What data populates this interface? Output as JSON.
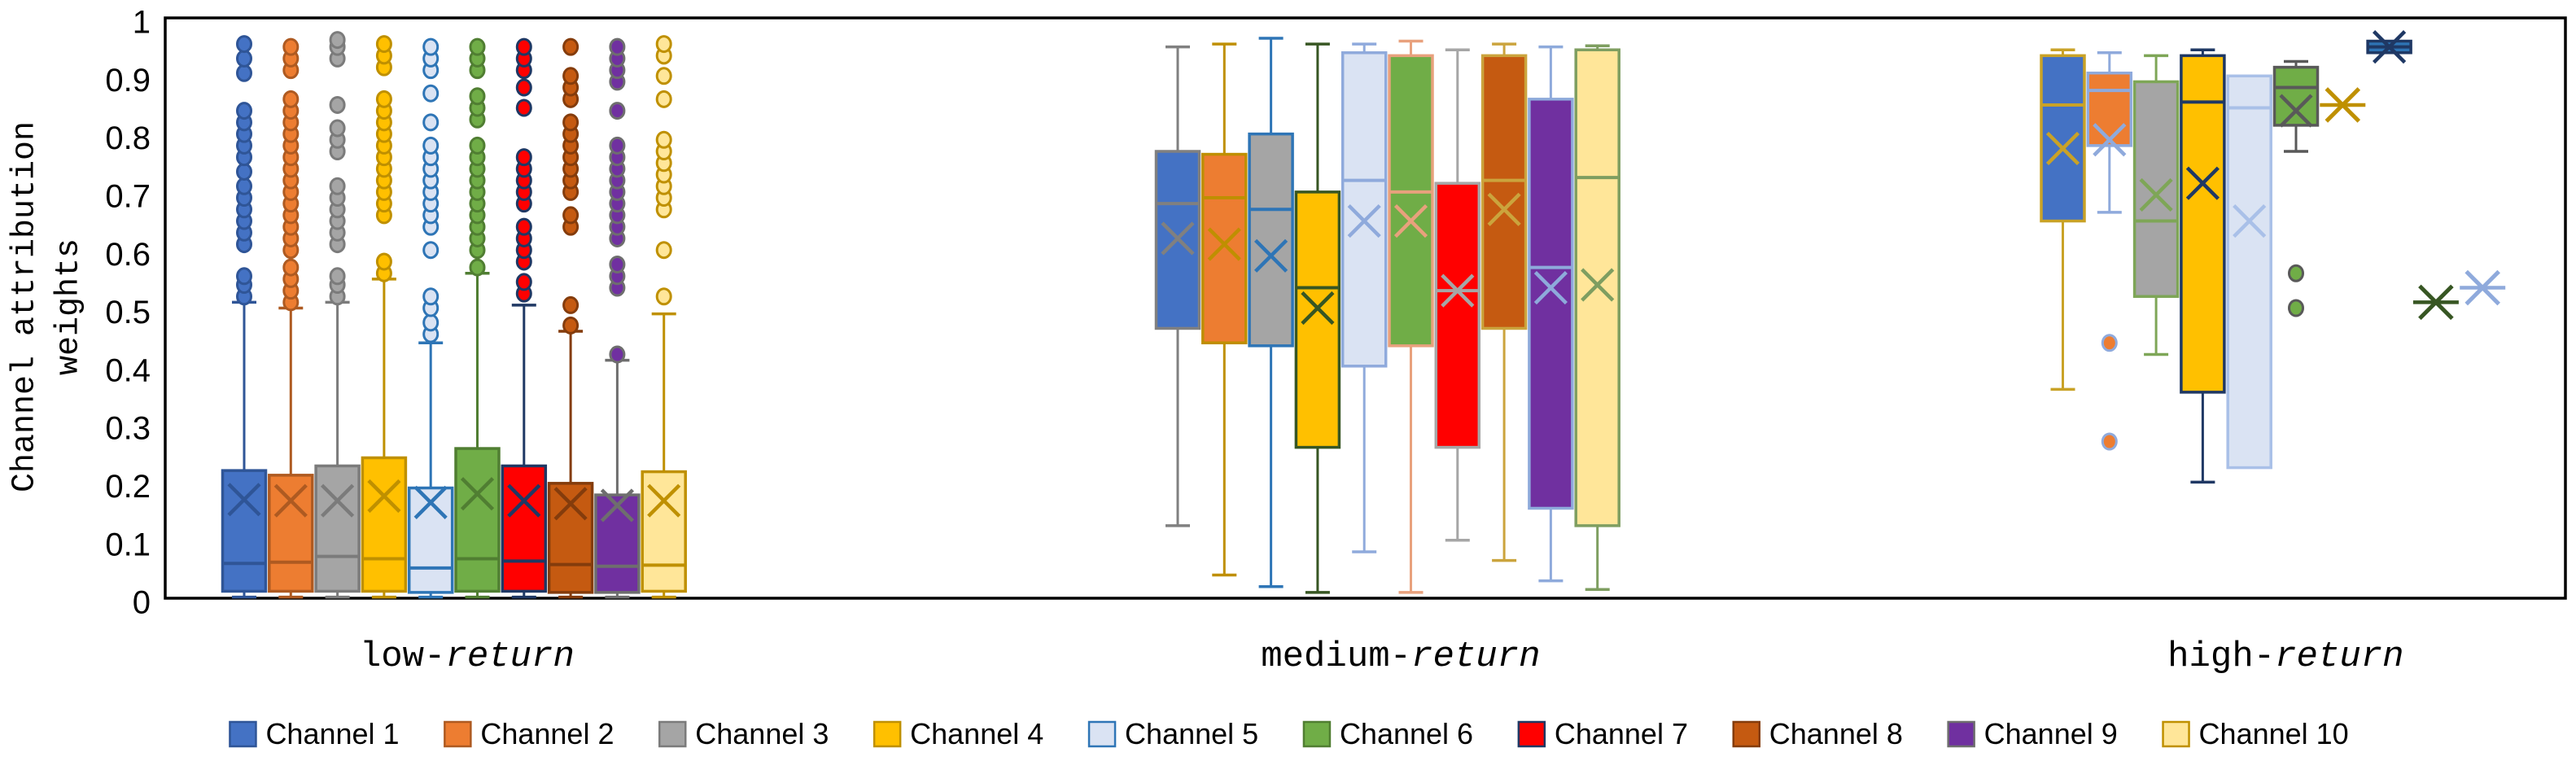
{
  "chart_data": {
    "type": "boxplot",
    "title": "",
    "ylabel_line1": "Channel attribution",
    "ylabel_line2": "weights",
    "ylim": [
      0,
      1
    ],
    "yticks": [
      "0",
      "0.1",
      "0.2",
      "0.3",
      "0.4",
      "0.5",
      "0.6",
      "0.7",
      "0.8",
      "0.9",
      "1"
    ],
    "ytick_values": [
      0,
      0.1,
      0.2,
      0.3,
      0.4,
      0.5,
      0.6,
      0.7,
      0.8,
      0.9,
      1
    ],
    "grid": false,
    "legend_position": "bottom",
    "categories": [
      "low-return",
      "medium-return",
      "high-return"
    ],
    "category_labels": [
      {
        "prefix": "low-",
        "italic": "return"
      },
      {
        "prefix": "medium-",
        "italic": "return"
      },
      {
        "prefix": "high-",
        "italic": "return"
      }
    ],
    "channels": [
      {
        "name": "Channel 1",
        "fill": "#4472C4"
      },
      {
        "name": "Channel 2",
        "fill": "#ED7D31"
      },
      {
        "name": "Channel 3",
        "fill": "#A5A5A5"
      },
      {
        "name": "Channel 4",
        "fill": "#FFC000"
      },
      {
        "name": "Channel 5",
        "fill": "#DAE3F3"
      },
      {
        "name": "Channel 6",
        "fill": "#70AD47"
      },
      {
        "name": "Channel 7",
        "fill": "#FF0000"
      },
      {
        "name": "Channel 8",
        "fill": "#C55A11"
      },
      {
        "name": "Channel 9",
        "fill": "#7030A0"
      },
      {
        "name": "Channel 10",
        "fill": "#FFE699"
      }
    ],
    "groups": [
      {
        "category": "low-return",
        "series": [
          {
            "channel": "Channel 1",
            "stroke": "#2F5597",
            "whisker_low": 0.002,
            "q1": 0.012,
            "median": 0.06,
            "q3": 0.22,
            "whisker_high": 0.51,
            "mean": 0.17,
            "outliers": [
              0.52,
              0.54,
              0.555,
              0.61,
              0.63,
              0.65,
              0.67,
              0.69,
              0.71,
              0.735,
              0.76,
              0.78,
              0.8,
              0.82,
              0.84,
              0.905,
              0.93,
              0.955
            ]
          },
          {
            "channel": "Channel 2",
            "stroke": "#AE5A21",
            "whisker_low": 0.002,
            "q1": 0.012,
            "median": 0.062,
            "q3": 0.212,
            "whisker_high": 0.5,
            "mean": 0.168,
            "outliers": [
              0.51,
              0.53,
              0.55,
              0.57,
              0.6,
              0.62,
              0.64,
              0.66,
              0.68,
              0.7,
              0.72,
              0.74,
              0.76,
              0.78,
              0.8,
              0.82,
              0.84,
              0.86,
              0.91,
              0.93,
              0.95
            ]
          },
          {
            "channel": "Channel 3",
            "stroke": "#7B7B7B",
            "whisker_low": 0.002,
            "q1": 0.012,
            "median": 0.072,
            "q3": 0.228,
            "whisker_high": 0.51,
            "mean": 0.168,
            "outliers": [
              0.52,
              0.54,
              0.555,
              0.61,
              0.63,
              0.65,
              0.67,
              0.69,
              0.71,
              0.77,
              0.79,
              0.81,
              0.85,
              0.93,
              0.95,
              0.962
            ]
          },
          {
            "channel": "Channel 4",
            "stroke": "#BF9000",
            "whisker_low": 0.002,
            "q1": 0.012,
            "median": 0.068,
            "q3": 0.242,
            "whisker_high": 0.55,
            "mean": 0.176,
            "outliers": [
              0.56,
              0.58,
              0.66,
              0.68,
              0.7,
              0.72,
              0.74,
              0.76,
              0.78,
              0.8,
              0.82,
              0.84,
              0.86,
              0.915,
              0.935,
              0.955
            ]
          },
          {
            "channel": "Channel 5",
            "stroke": "#2E75B6",
            "whisker_low": 0.002,
            "q1": 0.01,
            "median": 0.052,
            "q3": 0.19,
            "whisker_high": 0.44,
            "mean": 0.165,
            "outliers": [
              0.455,
              0.475,
              0.5,
              0.52,
              0.6,
              0.64,
              0.66,
              0.68,
              0.7,
              0.72,
              0.74,
              0.76,
              0.78,
              0.82,
              0.87,
              0.91,
              0.93,
              0.95
            ]
          },
          {
            "channel": "Channel 6",
            "stroke": "#507E32",
            "whisker_low": 0.002,
            "q1": 0.012,
            "median": 0.068,
            "q3": 0.258,
            "whisker_high": 0.56,
            "mean": 0.18,
            "outliers": [
              0.57,
              0.6,
              0.62,
              0.64,
              0.66,
              0.68,
              0.7,
              0.72,
              0.74,
              0.76,
              0.78,
              0.825,
              0.845,
              0.865,
              0.91,
              0.93,
              0.95
            ]
          },
          {
            "channel": "Channel 7",
            "stroke": "#1F3864",
            "whisker_low": 0.002,
            "q1": 0.012,
            "median": 0.064,
            "q3": 0.228,
            "whisker_high": 0.505,
            "mean": 0.168,
            "outliers": [
              0.525,
              0.545,
              0.58,
              0.6,
              0.62,
              0.64,
              0.68,
              0.7,
              0.72,
              0.74,
              0.76,
              0.845,
              0.88,
              0.91,
              0.93,
              0.95
            ]
          },
          {
            "channel": "Channel 8",
            "stroke": "#843C0C",
            "whisker_low": 0.002,
            "q1": 0.01,
            "median": 0.058,
            "q3": 0.198,
            "whisker_high": 0.46,
            "mean": 0.163,
            "outliers": [
              0.47,
              0.505,
              0.64,
              0.66,
              0.7,
              0.72,
              0.74,
              0.76,
              0.78,
              0.8,
              0.82,
              0.86,
              0.88,
              0.9,
              0.95
            ]
          },
          {
            "channel": "Channel 9",
            "stroke": "#6E6E6E",
            "whisker_low": 0.002,
            "q1": 0.01,
            "median": 0.055,
            "q3": 0.178,
            "whisker_high": 0.41,
            "mean": 0.16,
            "outliers": [
              0.42,
              0.535,
              0.555,
              0.575,
              0.62,
              0.64,
              0.66,
              0.68,
              0.7,
              0.72,
              0.74,
              0.76,
              0.78,
              0.84,
              0.89,
              0.91,
              0.93,
              0.95
            ]
          },
          {
            "channel": "Channel 10",
            "stroke": "#BF9000",
            "whisker_low": 0.002,
            "q1": 0.012,
            "median": 0.057,
            "q3": 0.218,
            "whisker_high": 0.49,
            "mean": 0.168,
            "outliers": [
              0.52,
              0.6,
              0.67,
              0.69,
              0.71,
              0.73,
              0.75,
              0.77,
              0.79,
              0.86,
              0.9,
              0.935,
              0.955
            ]
          }
        ]
      },
      {
        "category": "medium-return",
        "series": [
          {
            "channel": "Channel 1",
            "stroke": "#808080",
            "whisker_low": 0.125,
            "q1": 0.465,
            "median": 0.68,
            "q3": 0.77,
            "whisker_high": 0.95,
            "mean": 0.62,
            "outliers": []
          },
          {
            "channel": "Channel 2",
            "stroke": "#BF8F00",
            "whisker_low": 0.04,
            "q1": 0.44,
            "median": 0.69,
            "q3": 0.765,
            "whisker_high": 0.955,
            "mean": 0.61,
            "outliers": []
          },
          {
            "channel": "Channel 3",
            "stroke": "#2E75B6",
            "whisker_low": 0.02,
            "q1": 0.435,
            "median": 0.67,
            "q3": 0.8,
            "whisker_high": 0.965,
            "mean": 0.59,
            "outliers": []
          },
          {
            "channel": "Channel 4",
            "stroke": "#375623",
            "whisker_low": 0.01,
            "q1": 0.26,
            "median": 0.535,
            "q3": 0.7,
            "whisker_high": 0.955,
            "mean": 0.5,
            "outliers": []
          },
          {
            "channel": "Channel 5",
            "stroke": "#8FAADC",
            "whisker_low": 0.08,
            "q1": 0.4,
            "median": 0.72,
            "q3": 0.94,
            "whisker_high": 0.955,
            "mean": 0.65,
            "outliers": []
          },
          {
            "channel": "Channel 6",
            "stroke": "#E8A17D",
            "whisker_low": 0.01,
            "q1": 0.435,
            "median": 0.7,
            "q3": 0.935,
            "whisker_high": 0.96,
            "mean": 0.65,
            "outliers": []
          },
          {
            "channel": "Channel 7",
            "stroke": "#A6A6A6",
            "whisker_low": 0.1,
            "q1": 0.26,
            "median": 0.53,
            "q3": 0.715,
            "whisker_high": 0.945,
            "mean": 0.53,
            "outliers": []
          },
          {
            "channel": "Channel 8",
            "stroke": "#CBA43D",
            "whisker_low": 0.065,
            "q1": 0.465,
            "median": 0.72,
            "q3": 0.935,
            "whisker_high": 0.955,
            "mean": 0.67,
            "outliers": []
          },
          {
            "channel": "Channel 9",
            "stroke": "#8EAADB",
            "whisker_low": 0.03,
            "q1": 0.155,
            "median": 0.57,
            "q3": 0.86,
            "whisker_high": 0.95,
            "mean": 0.535,
            "outliers": []
          },
          {
            "channel": "Channel 10",
            "stroke": "#7E9E60",
            "whisker_low": 0.015,
            "q1": 0.125,
            "median": 0.725,
            "q3": 0.945,
            "whisker_high": 0.952,
            "mean": 0.54,
            "outliers": []
          }
        ]
      },
      {
        "category": "high-return",
        "series": [
          {
            "channel": "Channel 1",
            "stroke": "#C9A227",
            "whisker_low": 0.36,
            "q1": 0.65,
            "median": 0.85,
            "q3": 0.935,
            "whisker_high": 0.945,
            "mean": 0.775,
            "outliers": []
          },
          {
            "channel": "Channel 2",
            "stroke": "#8FAADC",
            "whisker_low": 0.665,
            "q1": 0.78,
            "median": 0.875,
            "q3": 0.905,
            "whisker_high": 0.94,
            "mean": 0.79,
            "outliers": [
              0.44,
              0.27
            ]
          },
          {
            "channel": "Channel 3",
            "stroke": "#7EA657",
            "whisker_low": 0.42,
            "q1": 0.52,
            "median": 0.65,
            "q3": 0.89,
            "whisker_high": 0.935,
            "mean": 0.695,
            "outliers": []
          },
          {
            "channel": "Channel 4",
            "stroke": "#1F3864",
            "whisker_low": 0.2,
            "q1": 0.355,
            "median": 0.855,
            "q3": 0.935,
            "whisker_high": 0.945,
            "mean": 0.715,
            "outliers": []
          },
          {
            "channel": "Channel 5",
            "stroke": "#A9C0E8",
            "whisker_low": 0.225,
            "q1": 0.225,
            "median": 0.845,
            "q3": 0.9,
            "whisker_high": 0.9,
            "mean": 0.65,
            "outliers": []
          },
          {
            "channel": "Channel 6",
            "stroke": "#595959",
            "whisker_low": 0.77,
            "q1": 0.815,
            "median": 0.88,
            "q3": 0.915,
            "whisker_high": 0.925,
            "mean": 0.84,
            "outliers": [
              0.56,
              0.5
            ]
          },
          {
            "channel": "Channel 7",
            "stroke": "#BF9000",
            "star": true,
            "value": 0.85,
            "mean": 0.85,
            "outliers": []
          },
          {
            "channel": "Channel 8",
            "stroke": "#1F3864",
            "fill_override": "#2E74B5",
            "whisker_low": 0.94,
            "q1": 0.94,
            "median": 0.95,
            "q3": 0.96,
            "whisker_high": 0.96,
            "mean": 0.95,
            "outliers": []
          },
          {
            "channel": "Channel 9",
            "stroke": "#375623",
            "star": true,
            "value": 0.51,
            "mean": 0.51,
            "outliers": []
          },
          {
            "channel": "Channel 10",
            "stroke": "#8FAADC",
            "star": true,
            "value": 0.535,
            "mean": 0.535,
            "outliers": []
          }
        ]
      }
    ],
    "legend": [
      {
        "label": "Channel 1"
      },
      {
        "label": "Channel 2"
      },
      {
        "label": "Channel 3"
      },
      {
        "label": "Channel 4"
      },
      {
        "label": "Channel 5"
      },
      {
        "label": "Channel 6"
      },
      {
        "label": "Channel 7"
      },
      {
        "label": "Channel 8"
      },
      {
        "label": "Channel 9"
      },
      {
        "label": "Channel 10"
      }
    ]
  }
}
